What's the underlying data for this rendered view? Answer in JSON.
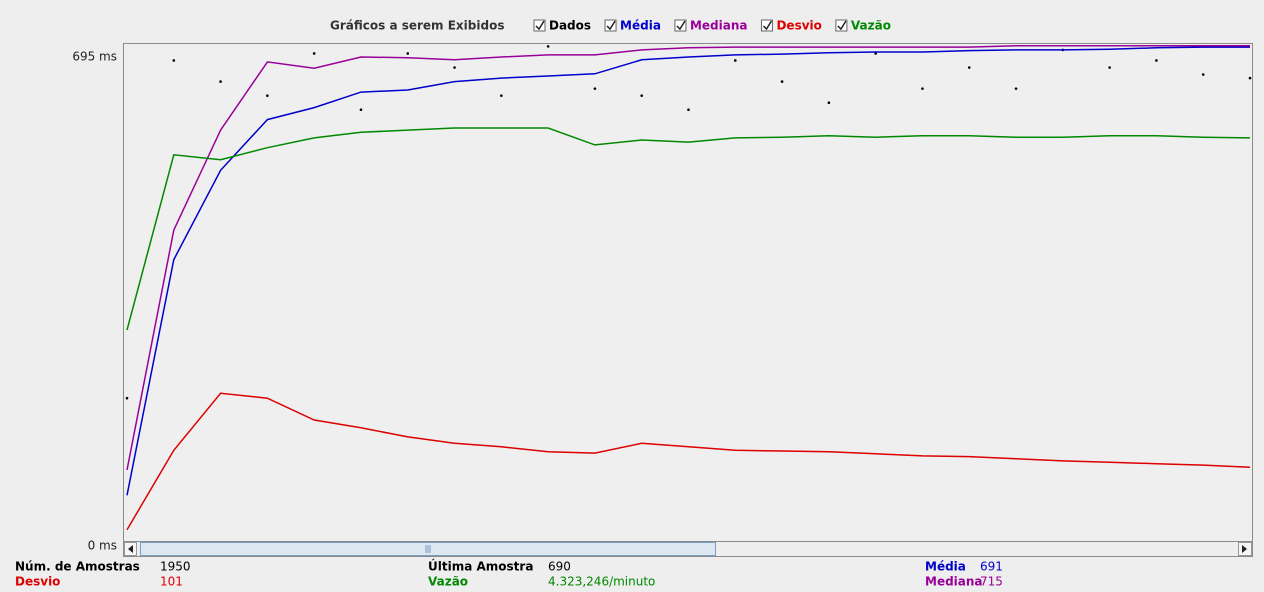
{
  "chart_data": {
    "type": "line",
    "title": "Gráficos a serem Exibidos",
    "ylim": [
      0,
      712
    ],
    "yticks": [
      {
        "value": 0,
        "label": "0 ms"
      },
      {
        "value": 695,
        "label": "695 ms"
      }
    ],
    "grid": false,
    "series": [
      {
        "name": "Dados",
        "color": "#000000",
        "style": "dots",
        "values": [
          210,
          690,
          660,
          640,
          700,
          620,
          700,
          680,
          640,
          710,
          650,
          640,
          620,
          690,
          660,
          630,
          700,
          650,
          680,
          650,
          705,
          680,
          690,
          670,
          665
        ]
      },
      {
        "name": "Média",
        "color": "#0000cc",
        "values": [
          72,
          407,
          534,
          606,
          623,
          645,
          648,
          660,
          665,
          668,
          671,
          691,
          695,
          698,
          699,
          701,
          702,
          702,
          704,
          705,
          705,
          706,
          708,
          709,
          709
        ]
      },
      {
        "name": "Mediana",
        "color": "#990099",
        "values": [
          108,
          449,
          591,
          688,
          679,
          695,
          694,
          691,
          695,
          698,
          698,
          705,
          708,
          709,
          709,
          709,
          709,
          709,
          709,
          711,
          711,
          711,
          711,
          711,
          711
        ]
      },
      {
        "name": "Desvio",
        "color": "#dd0000",
        "values": [
          23,
          136,
          217,
          210,
          179,
          168,
          155,
          146,
          141,
          134,
          132,
          146,
          141,
          136,
          135,
          134,
          131,
          128,
          127,
          124,
          121,
          119,
          117,
          115,
          112
        ]
      },
      {
        "name": "Vazão",
        "color": "#008800",
        "values": [
          307,
          556,
          549,
          566,
          580,
          588,
          591,
          594,
          594,
          594,
          570,
          577,
          574,
          580,
          581,
          583,
          581,
          583,
          583,
          581,
          581,
          583,
          583,
          581,
          580
        ]
      }
    ]
  },
  "stats": [
    {
      "label": "Núm. de Amostras",
      "value": "1950",
      "color": "#000000"
    },
    {
      "label": "Última Amostra",
      "value": "690",
      "color": "#000000"
    },
    {
      "label": "Média",
      "value": "691",
      "color": "#0000cc"
    },
    {
      "label": "Desvio",
      "value": "101",
      "color": "#dd0000"
    },
    {
      "label": "Vazão",
      "value": "4.323,246/minuto",
      "color": "#008800"
    },
    {
      "label": "Mediana",
      "value": "715",
      "color": "#990099"
    }
  ]
}
